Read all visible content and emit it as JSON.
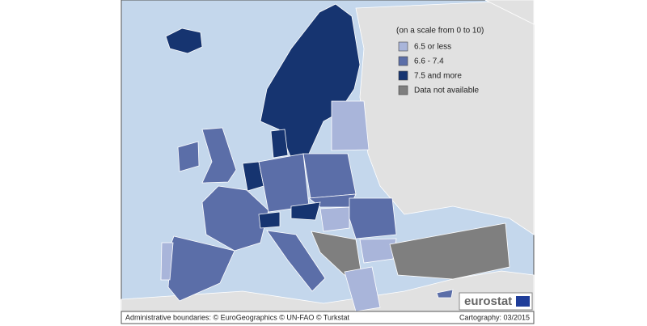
{
  "legend": {
    "title": "(on a scale from 0 to 10)",
    "items": [
      {
        "label": "6.5 or less",
        "color": "#a9b5da"
      },
      {
        "label": "6.6 - 7.4",
        "color": "#5b6ea8"
      },
      {
        "label": "7.5 and more",
        "color": "#163470"
      },
      {
        "label": "Data not available",
        "color": "#7f7f7f"
      }
    ]
  },
  "logo": "eurostat",
  "footer": {
    "left": "Administrative boundaries: © EuroGeographics © UN-FAO © Turkstat",
    "right": "Cartography: 03/2015"
  }
}
